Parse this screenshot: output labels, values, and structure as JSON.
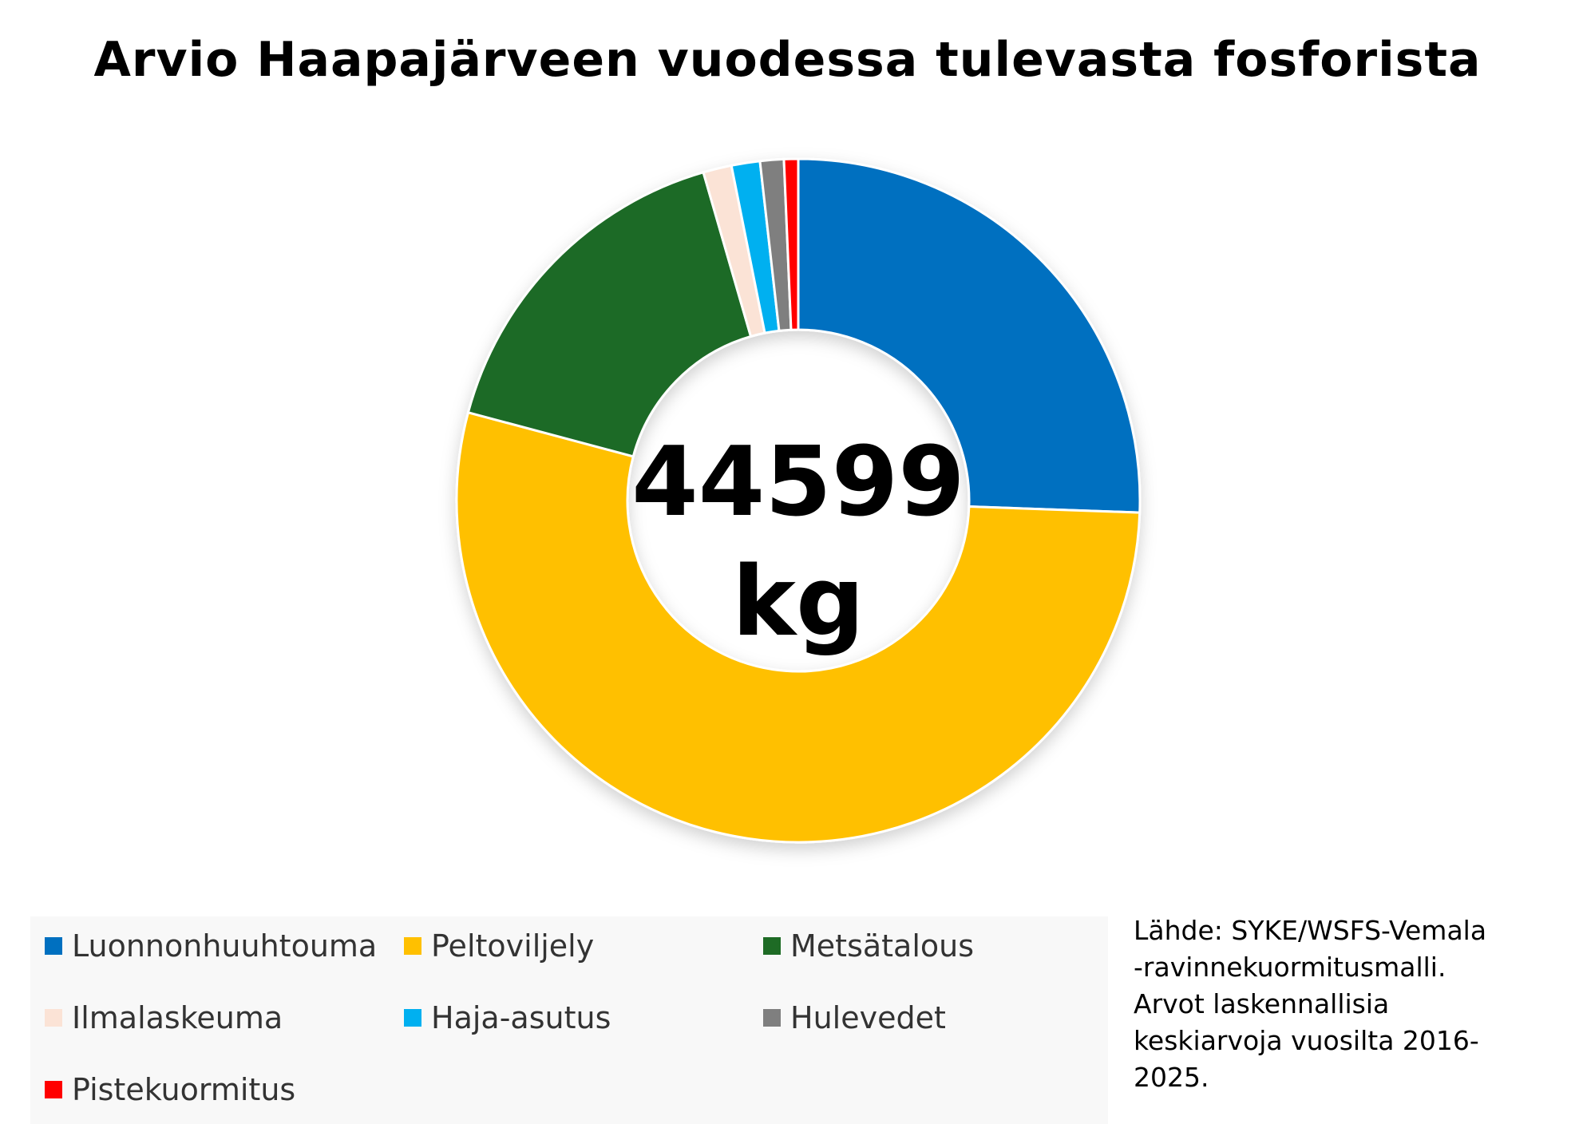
{
  "chart_data": {
    "type": "pie",
    "title": "Arvio Haapajärveen vuodessa tulevasta fosforista",
    "center_label": [
      "44599",
      "kg"
    ],
    "categories": [
      "Luonnonhuuhtouma",
      "Peltoviljely",
      "Metsätalous",
      "Ilmalaskeuma",
      "Haja-asutus",
      "Hulevedet",
      "Pistekuormitus"
    ],
    "values": [
      11400,
      23900,
      7300,
      600,
      600,
      500,
      299
    ],
    "colors": [
      "#0070c0",
      "#ffc000",
      "#1e6b25",
      "#fbe3d6",
      "#00b0f0",
      "#7f7f7f",
      "#ff0000"
    ],
    "inner_radius_ratio": 0.5,
    "start": "12 o'clock, clockwise",
    "legend_position": "bottom-left"
  },
  "note_lines": [
    "Lähde: SYKE/WSFS-Vemala",
    "-ravinnekuormitusmalli.",
    "Arvot laskennallisia",
    "keskiarvoja vuosilta 2016-",
    "2025."
  ]
}
